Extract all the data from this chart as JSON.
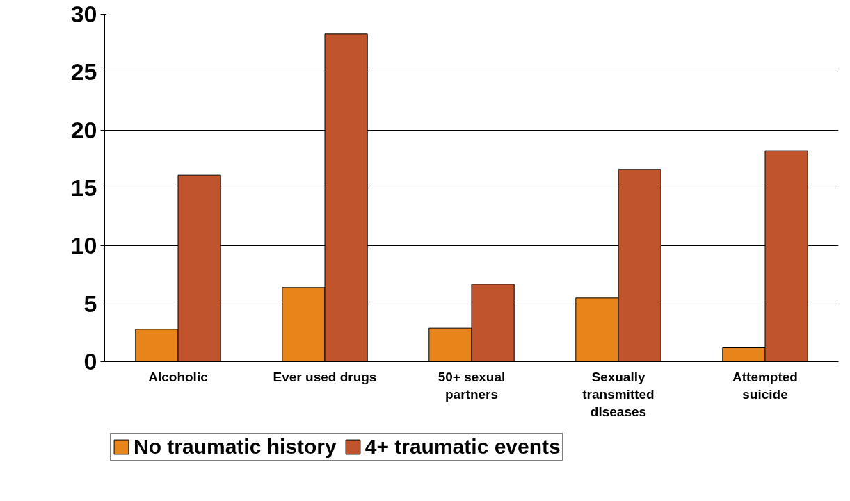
{
  "chart_data": {
    "type": "bar",
    "categories": [
      "Alcoholic",
      "Ever used drugs",
      "50+ sexual partners",
      "Sexually transmitted diseases",
      "Attempted suicide"
    ],
    "series": [
      {
        "name": "No traumatic history",
        "color": "#e8851a",
        "values": [
          2.8,
          6.4,
          2.9,
          5.5,
          1.2
        ]
      },
      {
        "name": "4+ traumatic events",
        "color": "#c0552d",
        "values": [
          16.1,
          28.3,
          6.7,
          16.6,
          18.2
        ]
      }
    ],
    "ylim": [
      0,
      30
    ],
    "yticks": [
      0,
      5,
      10,
      15,
      20,
      25,
      30
    ],
    "grid": "y",
    "legend": "bottom left"
  }
}
